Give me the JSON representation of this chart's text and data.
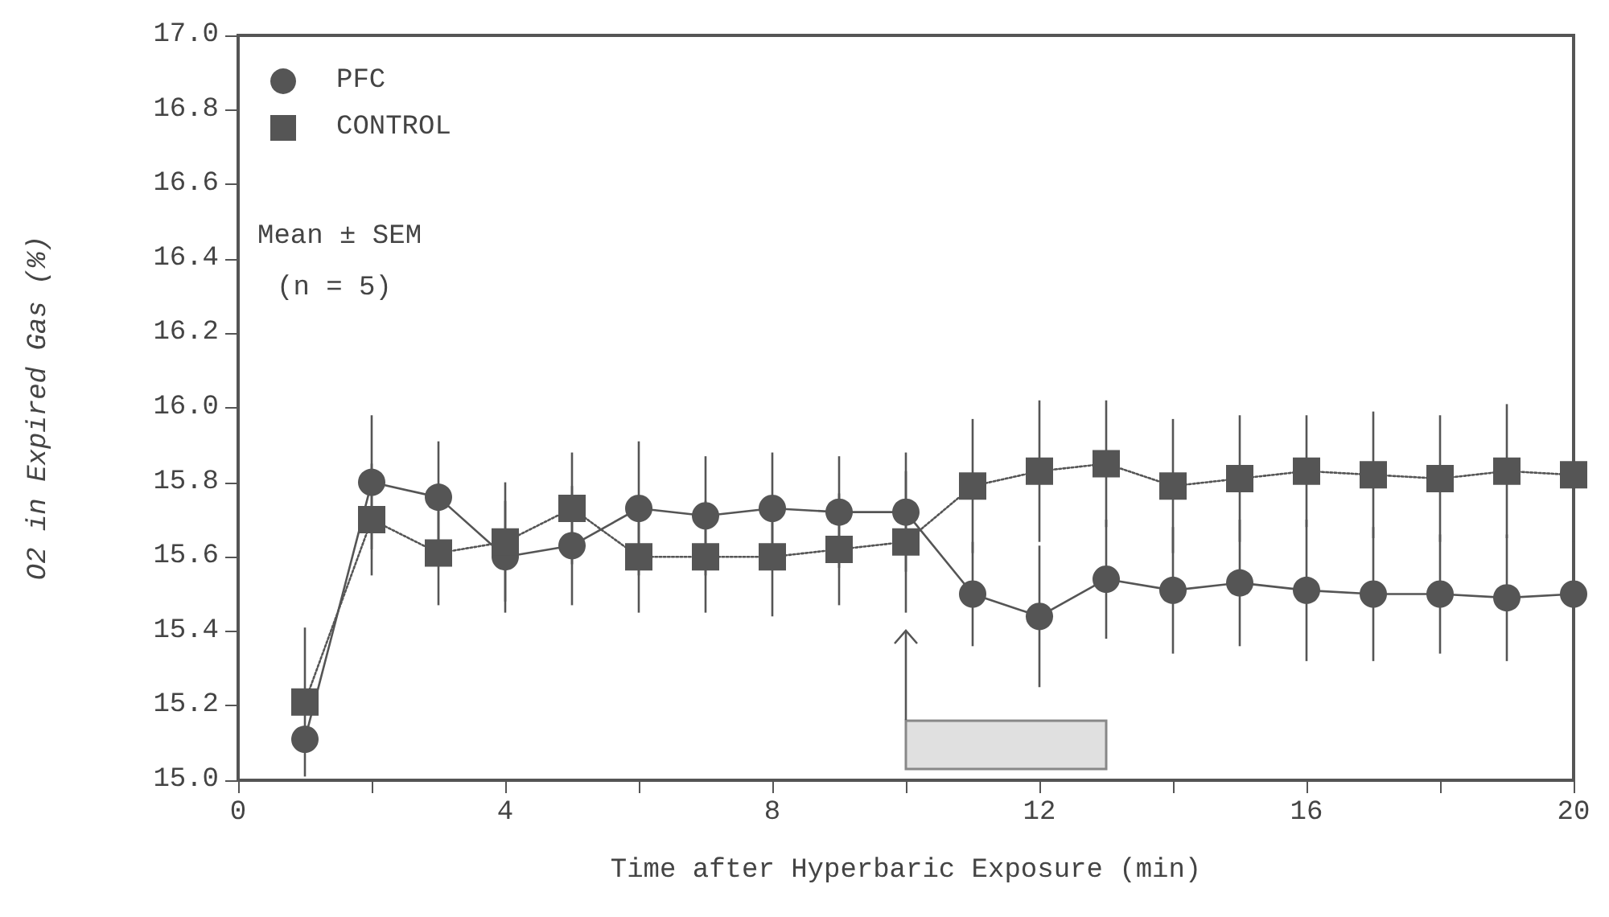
{
  "chart_data": {
    "type": "line",
    "xlabel": "Time after Hyperbaric Exposure (min)",
    "ylabel": "O2 in Expired Gas (%)",
    "x": [
      1,
      2,
      3,
      4,
      5,
      6,
      7,
      8,
      9,
      10,
      11,
      12,
      13,
      14,
      15,
      16,
      17,
      18,
      19,
      20
    ],
    "series": [
      {
        "name": "PFC",
        "color": "#555555",
        "marker": "circle",
        "line_style": "solid",
        "values": [
          15.11,
          15.8,
          15.76,
          15.6,
          15.63,
          15.73,
          15.71,
          15.73,
          15.72,
          15.72,
          15.5,
          15.44,
          15.54,
          15.51,
          15.53,
          15.51,
          15.5,
          15.5,
          15.49,
          15.5
        ],
        "errors": [
          null,
          0.18,
          0.15,
          0.15,
          0.16,
          0.18,
          0.16,
          0.15,
          0.15,
          0.16,
          0.14,
          0.19,
          0.16,
          0.17,
          0.17,
          0.19,
          0.18,
          0.16,
          0.17,
          0.18
        ]
      },
      {
        "name": "CONTROL",
        "color": "#555555",
        "marker": "square",
        "line_style": "dotted",
        "values": [
          15.21,
          15.7,
          15.61,
          15.64,
          15.73,
          15.6,
          15.6,
          15.6,
          15.62,
          15.64,
          15.79,
          15.83,
          15.85,
          15.79,
          15.81,
          15.83,
          15.82,
          15.81,
          15.83,
          15.82
        ],
        "errors": [
          0.2,
          0.15,
          0.14,
          0.16,
          0.15,
          0.15,
          0.15,
          0.16,
          0.15,
          0.19,
          0.18,
          0.19,
          0.17,
          0.18,
          0.17,
          0.15,
          0.17,
          0.17,
          0.18,
          0.18
        ]
      }
    ],
    "annotations": [
      "Mean ± SEM",
      "(n = 5)"
    ],
    "bands": [
      {
        "axis": "x",
        "from": 10,
        "to": 13,
        "color": "#888888"
      }
    ],
    "xlim": [
      0,
      20
    ],
    "xticks": [
      0,
      {
        "value": 2,
        "label": null
      },
      4,
      {
        "value": 6,
        "label": null
      },
      8,
      {
        "value": 10,
        "label": null
      },
      12,
      {
        "value": 14,
        "label": null
      },
      16,
      {
        "value": 18,
        "label": null
      },
      20
    ],
    "ylim": [
      15,
      17
    ],
    "yticks": [
      {
        "value": 15,
        "label": "15.0"
      },
      15.2,
      15.4,
      15.6,
      15.8,
      {
        "value": 16,
        "label": "16.0"
      },
      16.2,
      16.4,
      16.6,
      16.8,
      {
        "value": 17,
        "label": "17.0"
      }
    ],
    "grid": false,
    "legend": "top left"
  }
}
